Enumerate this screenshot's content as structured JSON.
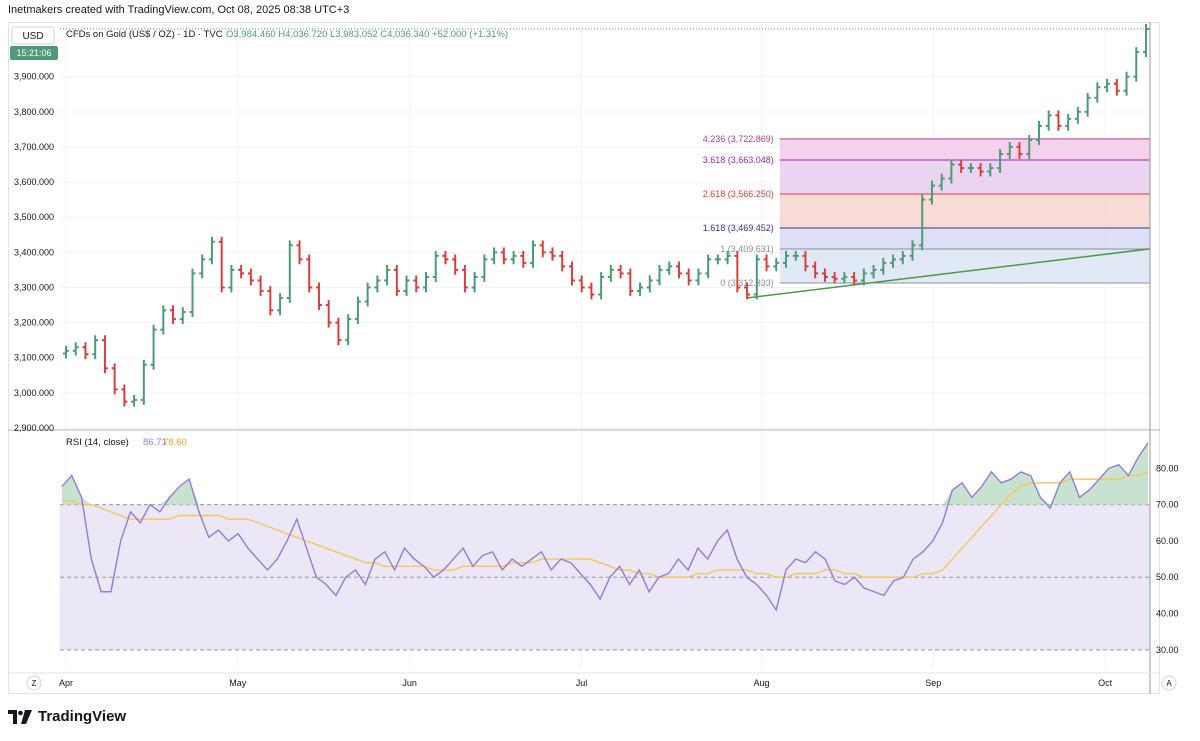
{
  "header": {
    "created_by": "Inetmakers created with TradingView.com, Oct 08, 2025 08:38 UTC+3"
  },
  "footer": {
    "brand": "TradingView"
  },
  "price_pane": {
    "currency": "USD",
    "countdown": "15:21:06",
    "legend": {
      "symbol": "CFDs on Gold (US$ / OZ) · 1D · TVC",
      "ohlc": "O3,984.460  H4,036.720  L3,983.052  C4,036.340  +52.000 (+1.31%)"
    }
  },
  "rsi_pane": {
    "label": "RSI (14, close)",
    "rsi_value": "86.71",
    "ma_value": "78.60"
  },
  "colors": {
    "up": "#4f9a76",
    "down": "#d1423f",
    "rsi": "#8d7fd6",
    "rsi_ma": "#f7c55a",
    "trend": "#4a9a45",
    "band": "#ece7f7"
  },
  "buttons": {
    "z": "Z",
    "a": "A"
  },
  "chart_data": [
    {
      "type": "ohlc",
      "title": "CFDs on Gold (US$ / OZ) · 1D · TVC",
      "ylim": [
        2900,
        4050
      ],
      "y_ticks": [
        "3,900.000",
        "3,800.000",
        "3,700.000",
        "3,600.000",
        "3,500.000",
        "3,400.000",
        "3,300.000",
        "3,200.000",
        "3,100.000",
        "3,000.000",
        "2,900.000"
      ],
      "x_ticks": [
        "Apr",
        "May",
        "Jun",
        "Jul",
        "Aug",
        "Sep",
        "Oct"
      ],
      "close_path": [
        3120,
        3130,
        3110,
        3150,
        3070,
        3010,
        2975,
        2980,
        3080,
        3180,
        3235,
        3210,
        3230,
        3340,
        3380,
        3430,
        3300,
        3350,
        3340,
        3320,
        3290,
        3235,
        3270,
        3420,
        3380,
        3300,
        3250,
        3200,
        3150,
        3210,
        3260,
        3300,
        3320,
        3350,
        3290,
        3320,
        3300,
        3330,
        3390,
        3380,
        3350,
        3300,
        3330,
        3380,
        3400,
        3380,
        3390,
        3370,
        3420,
        3400,
        3390,
        3360,
        3320,
        3300,
        3280,
        3330,
        3350,
        3340,
        3290,
        3300,
        3320,
        3350,
        3360,
        3340,
        3320,
        3340,
        3380,
        3380,
        3390,
        3300,
        3280,
        3380,
        3360,
        3370,
        3390,
        3390,
        3360,
        3340,
        3330,
        3325,
        3330,
        3320,
        3340,
        3350,
        3370,
        3380,
        3390,
        3420,
        3550,
        3590,
        3610,
        3650,
        3640,
        3640,
        3630,
        3640,
        3680,
        3700,
        3680,
        3720,
        3760,
        3790,
        3760,
        3780,
        3800,
        3840,
        3870,
        3880,
        3860,
        3900,
        3970,
        4036
      ],
      "fib_levels": [
        {
          "ratio": "4.236",
          "label": "4.236 (3,722.869)",
          "price": 3722.869,
          "color": "#b03f9c"
        },
        {
          "ratio": "3.618",
          "label": "3.618 (3,663.048)",
          "price": 3663.048,
          "color": "#9c27b0"
        },
        {
          "ratio": "2.618",
          "label": "2.618 (3,566.250)",
          "price": 3566.25,
          "color": "#d1423f"
        },
        {
          "ratio": "1.618",
          "label": "1.618 (3,469.452)",
          "price": 3469.452,
          "color": "#2d3a8c"
        },
        {
          "ratio": "1",
          "label": "1 (3,409.631)",
          "price": 3409.631,
          "color": "#8a8f99"
        },
        {
          "ratio": "0",
          "label": "0 (3,312.833)",
          "price": 3312.833,
          "color": "#8a8f99"
        }
      ],
      "trend_line": {
        "start_price": 3270,
        "end_price": 3410
      }
    },
    {
      "type": "line",
      "title": "RSI (14, close)",
      "ylim": [
        25,
        90
      ],
      "y_ticks": [
        "80.00",
        "70.00",
        "60.00",
        "50.00",
        "40.00",
        "30.00"
      ],
      "levels": [
        70,
        50,
        30
      ],
      "series": [
        {
          "name": "RSI",
          "values": [
            75,
            78,
            72,
            55,
            46,
            46,
            60,
            68,
            65,
            70,
            68,
            72,
            75,
            77,
            68,
            61,
            63,
            60,
            62,
            58,
            55,
            52,
            55,
            60,
            66,
            58,
            50,
            48,
            45,
            50,
            52,
            48,
            55,
            57,
            52,
            58,
            55,
            53,
            50,
            52,
            55,
            58,
            53,
            56,
            57,
            52,
            55,
            53,
            55,
            57,
            52,
            55,
            54,
            51,
            48,
            44,
            50,
            53,
            48,
            52,
            46,
            50,
            51,
            55,
            52,
            58,
            55,
            60,
            63,
            55,
            50,
            48,
            45,
            41,
            52,
            55,
            54,
            57,
            55,
            49,
            48,
            50,
            47,
            46,
            45,
            49,
            50,
            55,
            57,
            60,
            65,
            74,
            76,
            72,
            75,
            79,
            76,
            77,
            79,
            78,
            72,
            69,
            76,
            79,
            72,
            74,
            77,
            80,
            81,
            78,
            83,
            87
          ]
        },
        {
          "name": "RSI-based MA",
          "values": [
            71,
            71,
            70,
            70,
            69,
            68,
            67,
            66,
            66,
            66,
            66,
            66,
            67,
            67,
            67,
            67,
            67,
            66,
            66,
            66,
            65,
            64,
            63,
            62,
            61,
            60,
            59,
            58,
            57,
            56,
            55,
            54,
            54,
            53,
            53,
            53,
            53,
            53,
            52,
            52,
            52,
            53,
            53,
            53,
            53,
            53,
            54,
            54,
            54,
            55,
            55,
            55,
            55,
            55,
            55,
            54,
            53,
            52,
            52,
            51,
            51,
            50,
            50,
            50,
            50,
            51,
            51,
            52,
            52,
            52,
            52,
            51,
            51,
            50,
            50,
            51,
            51,
            51,
            52,
            52,
            51,
            51,
            50,
            50,
            50,
            50,
            50,
            50,
            51,
            51,
            52,
            55,
            58,
            61,
            64,
            67,
            70,
            73,
            75,
            76,
            76,
            76,
            76,
            77,
            77,
            77,
            77,
            77,
            77,
            78,
            78,
            79
          ]
        }
      ]
    }
  ]
}
